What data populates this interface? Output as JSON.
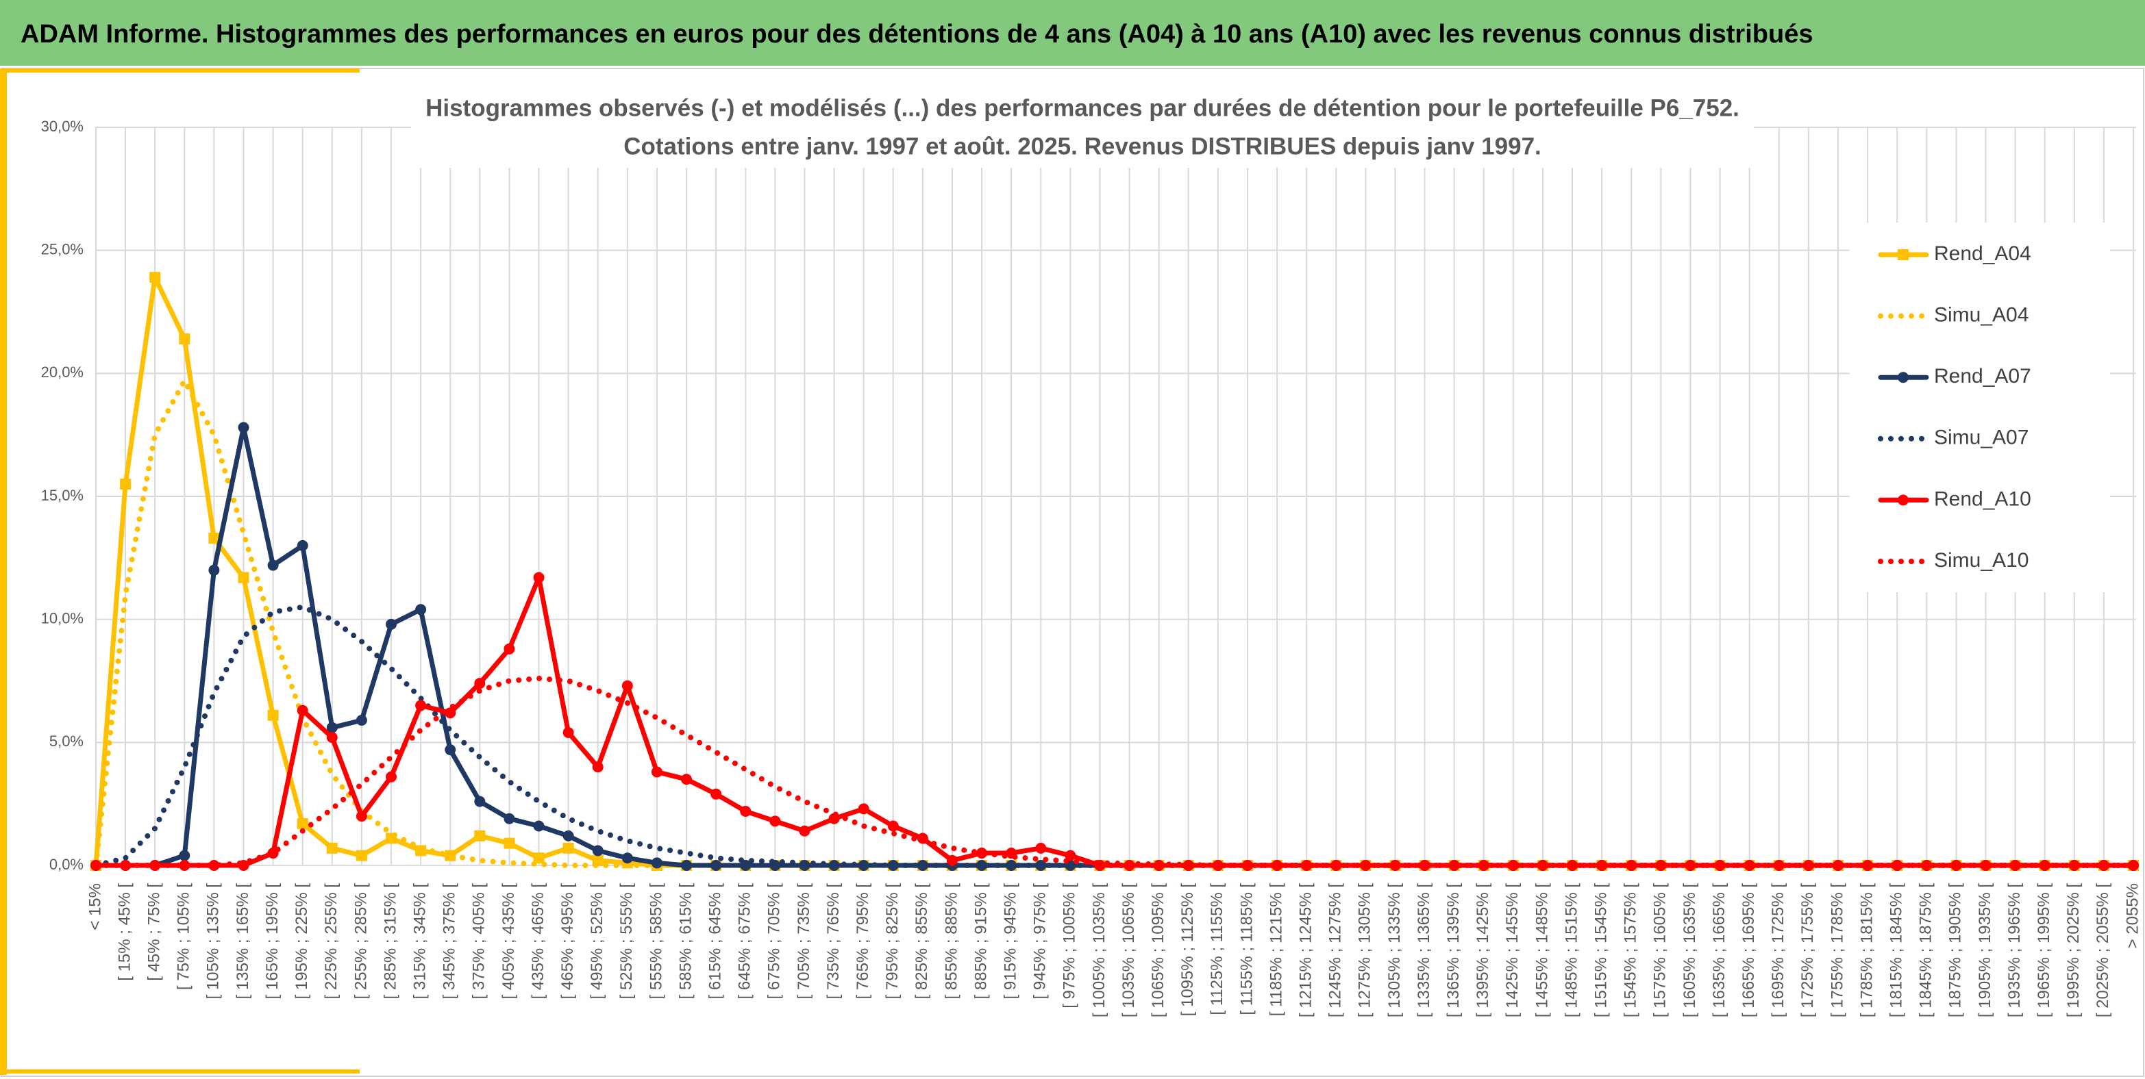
{
  "header": {
    "title": "ADAM Informe. Histogrammes des performances en euros pour des détentions de 4 ans (A04) à 10 ans (A10) avec les revenus connus distribués"
  },
  "chart_data": {
    "type": "line",
    "title": "Histogrammes observés (-) et modélisés (...) des performances par durées de détention pour le portefeuille P6_752.",
    "subtitle": "Cotations entre janv. 1997 et août. 2025. Revenus DISTRIBUES depuis janv 1997.",
    "categories": [
      "< 15%",
      "[ 15% ; 45% [",
      "[ 45% ; 75% [",
      "[ 75% ; 105% [",
      "[ 105% ; 135% [",
      "[ 135% ; 165% [",
      "[ 165% ; 195% [",
      "[ 195% ; 225% [",
      "[ 225% ; 255% [",
      "[ 255% ; 285% [",
      "[ 285% ; 315% [",
      "[ 315% ; 345% [",
      "[ 345% ; 375% [",
      "[ 375% ; 405% [",
      "[ 405% ; 435% [",
      "[ 435% ; 465% [",
      "[ 465% ; 495% [",
      "[ 495% ; 525% [",
      "[ 525% ; 555% [",
      "[ 555% ; 585% [",
      "[ 585% ; 615% [",
      "[ 615% ; 645% [",
      "[ 645% ; 675% [",
      "[ 675% ; 705% [",
      "[ 705% ; 735% [",
      "[ 735% ; 765% [",
      "[ 765% ; 795% [",
      "[ 795% ; 825% [",
      "[ 825% ; 855% [",
      "[ 855% ; 885% [",
      "[ 885% ; 915% [",
      "[ 915% ; 945% [",
      "[ 945% ; 975% [",
      "[ 975% ; 1005% [",
      "[ 1005% ; 1035% [",
      "[ 1035% ; 1065% [",
      "[ 1065% ; 1095% [",
      "[ 1095% ; 1125% [",
      "[ 1125% ; 1155% [",
      "[ 1155% ; 1185% [",
      "[ 1185% ; 1215% [",
      "[ 1215% ; 1245% [",
      "[ 1245% ; 1275% [",
      "[ 1275% ; 1305% [",
      "[ 1305% ; 1335% [",
      "[ 1335% ; 1365% [",
      "[ 1365% ; 1395% [",
      "[ 1395% ; 1425% [",
      "[ 1425% ; 1455% [",
      "[ 1455% ; 1485% [",
      "[ 1485% ; 1515% [",
      "[ 1515% ; 1545% [",
      "[ 1545% ; 1575% [",
      "[ 1575% ; 1605% [",
      "[ 1605% ; 1635% [",
      "[ 1635% ; 1665% [",
      "[ 1665% ; 1695% [",
      "[ 1695% ; 1725% [",
      "[ 1725% ; 1755% [",
      "[ 1755% ; 1785% [",
      "[ 1785% ; 1815% [",
      "[ 1815% ; 1845% [",
      "[ 1845% ; 1875% [",
      "[ 1875% ; 1905% [",
      "[ 1905% ; 1935% [",
      "[ 1935% ; 1965% [",
      "[ 1965% ; 1995% [",
      "[ 1995% ; 2025% [",
      "[ 2025% ; 2055% [",
      "> 2055%"
    ],
    "series": [
      {
        "name": "Rend_A04",
        "color": "#FFC000",
        "style": "solid",
        "marker": "square",
        "values": [
          0,
          15.5,
          23.9,
          21.4,
          13.3,
          11.7,
          6.1,
          1.7,
          0.7,
          0.4,
          1.1,
          0.6,
          0.4,
          1.2,
          0.9,
          0.3,
          0.7,
          0.2,
          0.1,
          0,
          0,
          0,
          0,
          0,
          0,
          0,
          0,
          0,
          0,
          0,
          0,
          0,
          0,
          0,
          0,
          0,
          0,
          0,
          0,
          0,
          0,
          0,
          0,
          0,
          0,
          0,
          0,
          0,
          0,
          0,
          0,
          0,
          0,
          0,
          0,
          0,
          0,
          0,
          0,
          0,
          0,
          0,
          0,
          0,
          0,
          0,
          0,
          0,
          0,
          0
        ]
      },
      {
        "name": "Simu_A04",
        "color": "#FFC000",
        "style": "dotted",
        "values": [
          0,
          11,
          17.5,
          19.7,
          17.5,
          13.5,
          9.5,
          6,
          3.7,
          2.2,
          1.3,
          0.7,
          0.4,
          0.2,
          0.1,
          0.05,
          0,
          0,
          0,
          0,
          0,
          0,
          0,
          0,
          0,
          0,
          0,
          0,
          0,
          0,
          0,
          0,
          0,
          0,
          0,
          0,
          0,
          0,
          0,
          0,
          0,
          0,
          0,
          0,
          0,
          0,
          0,
          0,
          0,
          0,
          0,
          0,
          0,
          0,
          0,
          0,
          0,
          0,
          0,
          0,
          0,
          0,
          0,
          0,
          0,
          0,
          0,
          0,
          0,
          0
        ]
      },
      {
        "name": "Rend_A07",
        "color": "#1F3864",
        "style": "solid",
        "marker": "circle",
        "values": [
          0,
          0,
          0,
          0.4,
          12,
          17.8,
          12.2,
          13,
          5.6,
          5.9,
          9.8,
          10.4,
          4.7,
          2.6,
          1.9,
          1.6,
          1.2,
          0.6,
          0.3,
          0.1,
          0,
          0,
          0,
          0,
          0,
          0,
          0,
          0,
          0,
          0,
          0,
          0,
          0,
          0,
          0,
          0,
          0,
          0,
          0,
          0,
          0,
          0,
          0,
          0,
          0,
          0,
          0,
          0,
          0,
          0,
          0,
          0,
          0,
          0,
          0,
          0,
          0,
          0,
          0,
          0,
          0,
          0,
          0,
          0,
          0,
          0,
          0,
          0,
          0,
          0
        ]
      },
      {
        "name": "Simu_A07",
        "color": "#1F3864",
        "style": "dotted",
        "values": [
          0,
          0.3,
          1.5,
          4,
          7,
          9.3,
          10.3,
          10.5,
          10,
          9.1,
          8,
          6.8,
          5.5,
          4.4,
          3.4,
          2.6,
          1.9,
          1.4,
          1,
          0.7,
          0.5,
          0.3,
          0.2,
          0.15,
          0.1,
          0.05,
          0.03,
          0,
          0,
          0,
          0,
          0,
          0,
          0,
          0,
          0,
          0,
          0,
          0,
          0,
          0,
          0,
          0,
          0,
          0,
          0,
          0,
          0,
          0,
          0,
          0,
          0,
          0,
          0,
          0,
          0,
          0,
          0,
          0,
          0,
          0,
          0,
          0,
          0,
          0,
          0,
          0,
          0,
          0,
          0
        ]
      },
      {
        "name": "Rend_A10",
        "color": "#FF0000",
        "style": "solid",
        "marker": "circle",
        "values": [
          0,
          0,
          0,
          0,
          0,
          0,
          0.5,
          6.3,
          5.2,
          2,
          3.6,
          6.5,
          6.2,
          7.4,
          8.8,
          11.7,
          5.4,
          4,
          7.3,
          3.8,
          3.5,
          2.9,
          2.2,
          1.8,
          1.4,
          1.9,
          2.3,
          1.6,
          1.1,
          0.2,
          0.5,
          0.5,
          0.7,
          0.4,
          0,
          0,
          0,
          0,
          0,
          0,
          0,
          0,
          0,
          0,
          0,
          0,
          0,
          0,
          0,
          0,
          0,
          0,
          0,
          0,
          0,
          0,
          0,
          0,
          0,
          0,
          0,
          0,
          0,
          0,
          0,
          0,
          0,
          0,
          0,
          0
        ]
      },
      {
        "name": "Simu_A10",
        "color": "#FF0000",
        "style": "dotted",
        "values": [
          0,
          0,
          0,
          0,
          0,
          0.1,
          0.5,
          1.4,
          2.3,
          3.3,
          4.4,
          5.5,
          6.4,
          7.1,
          7.5,
          7.6,
          7.5,
          7.1,
          6.6,
          6,
          5.3,
          4.6,
          3.9,
          3.2,
          2.6,
          2.1,
          1.6,
          1.3,
          1,
          0.7,
          0.5,
          0.35,
          0.25,
          0.17,
          0.1,
          0.07,
          0.05,
          0.03,
          0,
          0,
          0,
          0,
          0,
          0,
          0,
          0,
          0,
          0,
          0,
          0,
          0,
          0,
          0,
          0,
          0,
          0,
          0,
          0,
          0,
          0,
          0,
          0,
          0,
          0,
          0,
          0,
          0,
          0,
          0,
          0
        ]
      }
    ],
    "ylim": [
      0,
      30
    ],
    "yticks": [
      {
        "value": 0,
        "label": "0,0%"
      },
      {
        "value": 5,
        "label": "5,0%"
      },
      {
        "value": 10,
        "label": "10,0%"
      },
      {
        "value": 15,
        "label": "15,0%"
      },
      {
        "value": 20,
        "label": "20,0%"
      },
      {
        "value": 25,
        "label": "25,0%"
      },
      {
        "value": 30,
        "label": "30,0%"
      }
    ],
    "grid": true,
    "legend": "right"
  }
}
